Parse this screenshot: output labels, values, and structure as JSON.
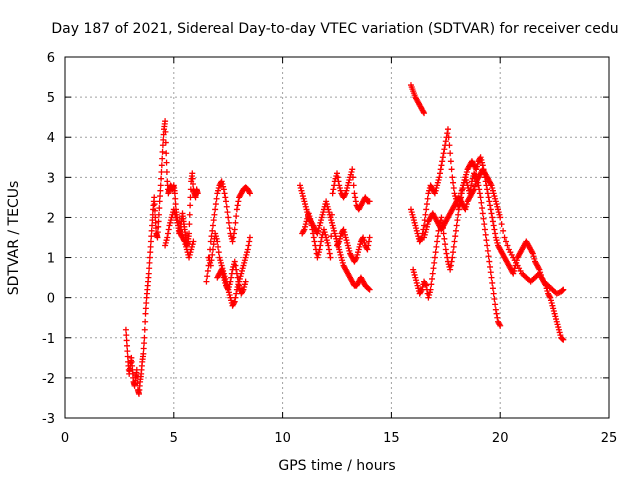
{
  "chart_data": {
    "type": "scatter",
    "title": "Day 187 of 2021, Sidereal Day-to-day VTEC variation (SDTVAR) for receiver cedu",
    "xlabel": "GPS time / hours",
    "ylabel": "SDTVAR / TECUs",
    "xlim": [
      0,
      25
    ],
    "ylim": [
      -3,
      6
    ],
    "grid": true,
    "marker": "plus",
    "color": "#ff0000",
    "xticks": [
      "0",
      "5",
      "10",
      "15",
      "20",
      "25"
    ],
    "yticks": [
      "-3",
      "-2",
      "-1",
      "0",
      "1",
      "2",
      "3",
      "4",
      "5",
      "6"
    ],
    "series": [
      {
        "name": "segment-1",
        "x": [
          2.8,
          2.85,
          2.9,
          2.95,
          3.0,
          3.05,
          3.1,
          3.15,
          3.2,
          3.25,
          3.3,
          3.35,
          3.4,
          3.45,
          3.5,
          3.55,
          3.6,
          3.65,
          3.7,
          3.75,
          3.8,
          3.85,
          3.9,
          3.95,
          4.0,
          4.05,
          4.1,
          4.15,
          4.2,
          4.25,
          4.3,
          4.35,
          4.4,
          4.45,
          4.5,
          4.55,
          4.6,
          4.65,
          4.7,
          4.75,
          4.8,
          4.85,
          4.9,
          4.95,
          5.0,
          5.05,
          5.1,
          5.15,
          5.2,
          5.25,
          5.3,
          5.35,
          5.4,
          5.45,
          5.5,
          5.55,
          5.6,
          5.65,
          5.7,
          5.75,
          5.8,
          5.85,
          5.9,
          5.95,
          6.0,
          6.05,
          6.1
        ],
        "y": [
          -0.8,
          -1.2,
          -1.6,
          -1.9,
          -1.7,
          -1.5,
          -1.8,
          -2.1,
          -2.2,
          -2.0,
          -1.8,
          -2.3,
          -2.4,
          -2.1,
          -1.9,
          -1.6,
          -1.4,
          -1.0,
          -0.4,
          0.0,
          0.3,
          0.6,
          1.0,
          1.4,
          1.8,
          2.2,
          2.5,
          2.0,
          1.6,
          1.5,
          1.9,
          2.4,
          2.8,
          3.3,
          3.8,
          4.2,
          4.4,
          3.6,
          2.9,
          2.6,
          2.7,
          2.8,
          2.75,
          2.7,
          2.8,
          2.6,
          2.2,
          2.0,
          1.8,
          1.6,
          1.7,
          1.9,
          2.1,
          1.9,
          1.7,
          1.5,
          1.3,
          1.4,
          1.6,
          2.3,
          2.9,
          3.1,
          2.7,
          2.6,
          2.5,
          2.7,
          2.6
        ]
      },
      {
        "name": "segment-1b",
        "x": [
          4.6,
          4.7,
          4.8,
          4.9,
          5.0,
          5.1,
          5.2,
          5.3,
          5.4,
          5.5,
          5.6,
          5.7,
          5.8,
          5.9
        ],
        "y": [
          1.3,
          1.5,
          1.8,
          2.0,
          2.2,
          2.0,
          1.8,
          1.6,
          1.5,
          1.4,
          1.2,
          1.0,
          1.2,
          1.4
        ]
      },
      {
        "name": "segment-2",
        "x": [
          6.5,
          6.6,
          6.7,
          6.8,
          6.9,
          7.0,
          7.1,
          7.2,
          7.3,
          7.4,
          7.5,
          7.6,
          7.7,
          7.8,
          7.9,
          8.0,
          8.1,
          8.2,
          8.3,
          8.4,
          8.5
        ],
        "y": [
          0.4,
          0.8,
          1.4,
          1.8,
          2.2,
          2.6,
          2.8,
          2.9,
          2.7,
          2.4,
          2.0,
          1.6,
          1.4,
          1.7,
          2.2,
          2.5,
          2.6,
          2.7,
          2.75,
          2.7,
          2.6
        ]
      },
      {
        "name": "segment-2b",
        "x": [
          6.6,
          6.7,
          6.8,
          6.9,
          7.0,
          7.1,
          7.2,
          7.3,
          7.4,
          7.5,
          7.6,
          7.7,
          7.8,
          7.9,
          8.0,
          8.1,
          8.2,
          8.3,
          8.4,
          8.5
        ],
        "y": [
          1.0,
          0.8,
          1.2,
          1.6,
          1.4,
          1.0,
          0.8,
          0.6,
          0.4,
          0.2,
          0.0,
          -0.2,
          -0.1,
          0.2,
          0.4,
          0.6,
          0.8,
          1.0,
          1.2,
          1.5
        ]
      },
      {
        "name": "segment-2c",
        "x": [
          7.0,
          7.1,
          7.2,
          7.3,
          7.4,
          7.5,
          7.6,
          7.7,
          7.8,
          7.9,
          8.0,
          8.1,
          8.2,
          8.3
        ],
        "y": [
          0.5,
          0.6,
          0.7,
          0.5,
          0.3,
          0.2,
          0.4,
          0.7,
          0.9,
          0.6,
          0.3,
          0.1,
          0.2,
          0.4
        ]
      },
      {
        "name": "segment-3",
        "x": [
          10.8,
          10.9,
          11.0,
          11.1,
          11.2,
          11.3,
          11.4,
          11.5,
          11.6,
          11.7,
          11.8,
          11.9,
          12.0,
          12.1,
          12.2,
          12.3,
          12.4,
          12.5,
          12.6,
          12.7,
          12.8,
          12.9,
          13.0,
          13.1,
          13.2,
          13.3,
          13.4,
          13.5,
          13.6,
          13.7,
          13.8,
          13.9,
          14.0
        ],
        "y": [
          2.8,
          2.6,
          2.4,
          2.2,
          2.0,
          1.9,
          1.8,
          1.7,
          1.6,
          1.8,
          2.0,
          2.2,
          2.4,
          2.2,
          2.0,
          1.8,
          1.6,
          1.4,
          1.2,
          1.0,
          0.8,
          0.7,
          0.6,
          0.5,
          0.4,
          0.3,
          0.3,
          0.4,
          0.5,
          0.4,
          0.3,
          0.25,
          0.2
        ]
      },
      {
        "name": "segment-3b",
        "x": [
          10.9,
          11.0,
          11.1,
          11.2,
          11.3,
          11.4,
          11.5,
          11.6,
          11.7,
          11.8,
          11.9,
          12.0,
          12.1,
          12.2,
          12.3,
          12.4,
          12.5,
          12.6,
          12.7,
          12.8,
          12.9,
          13.0,
          13.1,
          13.2,
          13.3,
          13.4,
          13.5,
          13.6,
          13.7,
          13.8,
          13.9,
          14.0
        ],
        "y": [
          1.6,
          1.7,
          1.9,
          2.1,
          1.9,
          1.6,
          1.3,
          1.0,
          1.2,
          1.5,
          1.7,
          1.5,
          1.3,
          1.0,
          2.6,
          2.9,
          3.1,
          2.8,
          2.6,
          2.5,
          2.6,
          2.8,
          3.0,
          3.2,
          2.6,
          2.3,
          2.2,
          2.3,
          2.4,
          2.5,
          2.4,
          2.4
        ]
      },
      {
        "name": "segment-3c",
        "x": [
          12.5,
          12.6,
          12.7,
          12.8,
          12.9,
          13.0,
          13.1,
          13.2,
          13.3,
          13.4,
          13.5,
          13.6,
          13.7,
          13.8,
          13.9,
          14.0
        ],
        "y": [
          1.3,
          1.4,
          1.6,
          1.7,
          1.5,
          1.3,
          1.1,
          1.0,
          0.9,
          1.0,
          1.2,
          1.4,
          1.5,
          1.3,
          1.2,
          1.5
        ]
      },
      {
        "name": "segment-4",
        "x": [
          15.9,
          16.0,
          16.1,
          16.2,
          16.3,
          16.4,
          16.5
        ],
        "y": [
          5.3,
          5.15,
          5.0,
          4.9,
          4.8,
          4.7,
          4.6
        ]
      },
      {
        "name": "segment-5",
        "x": [
          15.9,
          16.0,
          16.1,
          16.2,
          16.3,
          16.4,
          16.5,
          16.6,
          16.7,
          16.8,
          16.9,
          17.0,
          17.1,
          17.2,
          17.3,
          17.4,
          17.5,
          17.6,
          17.7,
          17.8,
          17.9,
          18.0,
          18.1,
          18.2,
          18.3,
          18.4,
          18.5,
          18.6,
          18.7,
          18.8,
          18.9,
          19.0,
          19.1,
          19.2,
          19.3,
          19.4,
          19.5,
          19.6,
          19.7,
          19.8,
          19.9,
          20.0,
          20.1,
          20.2,
          20.3,
          20.4,
          20.5,
          20.6,
          20.7,
          20.8,
          20.9,
          21.0,
          21.1,
          21.2,
          21.3,
          21.4,
          21.5,
          21.6,
          21.7,
          21.8,
          21.9,
          22.0,
          22.1,
          22.2,
          22.3,
          22.4,
          22.5,
          22.6,
          22.7,
          22.8,
          22.9
        ],
        "y": [
          2.2,
          2.0,
          1.8,
          1.6,
          1.4,
          1.5,
          1.8,
          2.2,
          2.6,
          2.8,
          2.7,
          2.6,
          2.8,
          3.0,
          3.3,
          3.6,
          3.9,
          4.2,
          3.6,
          3.0,
          2.6,
          2.4,
          2.2,
          2.5,
          2.8,
          3.0,
          3.2,
          3.3,
          3.4,
          3.3,
          3.2,
          3.4,
          3.5,
          3.3,
          3.0,
          2.7,
          2.4,
          2.1,
          1.8,
          1.5,
          1.3,
          1.2,
          1.1,
          1.0,
          0.9,
          0.8,
          0.7,
          0.6,
          0.8,
          1.0,
          1.1,
          1.2,
          1.3,
          1.4,
          1.3,
          1.2,
          1.1,
          0.9,
          0.8,
          0.7,
          0.5,
          0.4,
          0.3,
          0.1,
          0.0,
          -0.2,
          -0.4,
          -0.6,
          -0.8,
          -1.0,
          -1.05
        ]
      },
      {
        "name": "segment-5b",
        "x": [
          16.0,
          16.1,
          16.2,
          16.3,
          16.4,
          16.5,
          16.6,
          16.7,
          16.8,
          16.9,
          17.0,
          17.1,
          17.2,
          17.3,
          17.4,
          17.5,
          17.6,
          17.7,
          17.8,
          17.9,
          18.0,
          18.1,
          18.2,
          18.3,
          18.4,
          18.5,
          18.6,
          18.7,
          18.8,
          18.9,
          19.0,
          19.1,
          19.2,
          19.3,
          19.4,
          19.5,
          19.6,
          19.7,
          19.8,
          19.9,
          20.0
        ],
        "y": [
          0.7,
          0.5,
          0.3,
          0.1,
          0.2,
          0.4,
          0.3,
          0.0,
          0.2,
          0.6,
          1.0,
          1.4,
          1.8,
          2.0,
          1.6,
          1.2,
          0.9,
          0.7,
          1.0,
          1.4,
          1.8,
          2.2,
          2.6,
          2.8,
          3.0,
          2.8,
          2.6,
          2.9,
          3.1,
          3.0,
          2.8,
          2.5,
          2.1,
          1.7,
          1.3,
          0.9,
          0.5,
          0.1,
          -0.3,
          -0.6,
          -0.7
        ]
      },
      {
        "name": "segment-5c",
        "x": [
          16.5,
          16.6,
          16.7,
          16.8,
          16.9,
          17.0,
          17.1,
          17.2,
          17.3,
          17.4,
          17.5,
          17.6,
          17.7,
          17.8,
          17.9,
          18.0,
          18.1,
          18.2,
          18.3,
          18.4,
          18.5,
          18.6,
          18.7,
          18.8,
          18.9,
          19.0,
          19.1,
          19.2,
          19.3,
          19.4,
          19.5,
          19.6,
          19.7,
          19.8,
          19.9,
          20.0,
          20.2,
          20.4,
          20.6,
          20.8,
          21.0,
          21.2,
          21.4,
          21.6,
          21.8,
          22.0,
          22.2,
          22.4,
          22.6,
          22.8,
          22.9
        ],
        "y": [
          1.5,
          1.7,
          1.9,
          2.0,
          2.1,
          2.0,
          1.9,
          1.8,
          1.7,
          1.8,
          1.9,
          2.0,
          2.1,
          2.2,
          2.3,
          2.4,
          2.5,
          2.4,
          2.3,
          2.2,
          2.4,
          2.5,
          2.6,
          2.7,
          2.9,
          3.0,
          3.1,
          3.2,
          3.1,
          3.0,
          2.9,
          2.8,
          2.6,
          2.4,
          2.2,
          2.0,
          1.5,
          1.2,
          1.0,
          0.8,
          0.6,
          0.5,
          0.4,
          0.5,
          0.6,
          0.4,
          0.3,
          0.2,
          0.1,
          0.15,
          0.2
        ]
      }
    ]
  }
}
